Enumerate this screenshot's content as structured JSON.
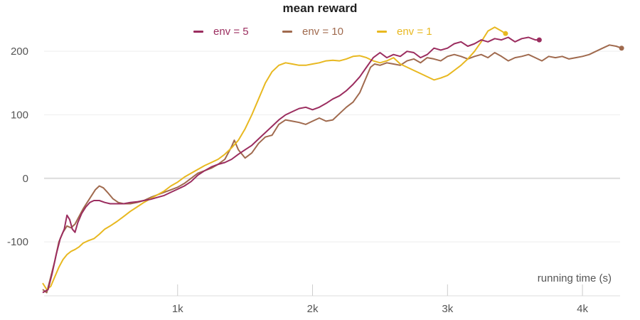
{
  "chart_data": {
    "type": "line",
    "title": "mean reward",
    "xlabel": "running time (s)",
    "ylabel": "",
    "xlim": [
      0,
      4300
    ],
    "ylim": [
      -185,
      245
    ],
    "xticks": [
      1000,
      2000,
      3000,
      4000
    ],
    "xtick_labels": [
      "1k",
      "2k",
      "3k",
      "4k"
    ],
    "yticks": [
      -100,
      0,
      100,
      200
    ],
    "ytick_labels": [
      "-100",
      "0",
      "100",
      "200"
    ],
    "grid": "horizontal",
    "legend_position": "top-center",
    "series": [
      {
        "name": "env = 5",
        "color": "#9b2d5f",
        "points": [
          [
            0,
            -180
          ],
          [
            40,
            -175
          ],
          [
            70,
            -150
          ],
          [
            100,
            -120
          ],
          [
            130,
            -95
          ],
          [
            160,
            -80
          ],
          [
            180,
            -58
          ],
          [
            200,
            -65
          ],
          [
            220,
            -80
          ],
          [
            240,
            -85
          ],
          [
            260,
            -70
          ],
          [
            290,
            -55
          ],
          [
            320,
            -45
          ],
          [
            350,
            -38
          ],
          [
            380,
            -35
          ],
          [
            420,
            -35
          ],
          [
            460,
            -38
          ],
          [
            500,
            -40
          ],
          [
            550,
            -40
          ],
          [
            600,
            -40
          ],
          [
            650,
            -38
          ],
          [
            700,
            -37
          ],
          [
            750,
            -35
          ],
          [
            800,
            -33
          ],
          [
            850,
            -30
          ],
          [
            900,
            -27
          ],
          [
            950,
            -22
          ],
          [
            1000,
            -17
          ],
          [
            1050,
            -12
          ],
          [
            1100,
            -5
          ],
          [
            1150,
            5
          ],
          [
            1200,
            12
          ],
          [
            1250,
            18
          ],
          [
            1300,
            22
          ],
          [
            1350,
            25
          ],
          [
            1400,
            30
          ],
          [
            1450,
            38
          ],
          [
            1500,
            45
          ],
          [
            1550,
            52
          ],
          [
            1600,
            62
          ],
          [
            1650,
            72
          ],
          [
            1700,
            82
          ],
          [
            1750,
            92
          ],
          [
            1800,
            100
          ],
          [
            1850,
            105
          ],
          [
            1900,
            110
          ],
          [
            1950,
            112
          ],
          [
            2000,
            108
          ],
          [
            2050,
            112
          ],
          [
            2100,
            118
          ],
          [
            2150,
            125
          ],
          [
            2200,
            130
          ],
          [
            2250,
            138
          ],
          [
            2300,
            148
          ],
          [
            2350,
            160
          ],
          [
            2400,
            175
          ],
          [
            2450,
            190
          ],
          [
            2500,
            198
          ],
          [
            2550,
            190
          ],
          [
            2600,
            195
          ],
          [
            2650,
            192
          ],
          [
            2700,
            200
          ],
          [
            2750,
            198
          ],
          [
            2800,
            190
          ],
          [
            2850,
            195
          ],
          [
            2900,
            205
          ],
          [
            2950,
            202
          ],
          [
            3000,
            205
          ],
          [
            3050,
            212
          ],
          [
            3100,
            215
          ],
          [
            3150,
            208
          ],
          [
            3200,
            212
          ],
          [
            3250,
            218
          ],
          [
            3300,
            215
          ],
          [
            3350,
            220
          ],
          [
            3400,
            218
          ],
          [
            3450,
            222
          ],
          [
            3500,
            215
          ],
          [
            3550,
            220
          ],
          [
            3600,
            222
          ],
          [
            3650,
            218
          ],
          [
            3680,
            218
          ]
        ]
      },
      {
        "name": "env = 10",
        "color": "#a06a4e",
        "points": [
          [
            0,
            -175
          ],
          [
            30,
            -180
          ],
          [
            60,
            -155
          ],
          [
            90,
            -130
          ],
          [
            120,
            -100
          ],
          [
            150,
            -85
          ],
          [
            180,
            -75
          ],
          [
            210,
            -78
          ],
          [
            240,
            -72
          ],
          [
            270,
            -60
          ],
          [
            300,
            -48
          ],
          [
            330,
            -38
          ],
          [
            360,
            -28
          ],
          [
            390,
            -18
          ],
          [
            420,
            -12
          ],
          [
            450,
            -15
          ],
          [
            480,
            -22
          ],
          [
            520,
            -32
          ],
          [
            560,
            -38
          ],
          [
            600,
            -40
          ],
          [
            650,
            -40
          ],
          [
            700,
            -38
          ],
          [
            750,
            -35
          ],
          [
            800,
            -30
          ],
          [
            850,
            -26
          ],
          [
            900,
            -22
          ],
          [
            950,
            -18
          ],
          [
            1000,
            -14
          ],
          [
            1050,
            -8
          ],
          [
            1100,
            0
          ],
          [
            1150,
            8
          ],
          [
            1200,
            12
          ],
          [
            1250,
            16
          ],
          [
            1300,
            22
          ],
          [
            1350,
            30
          ],
          [
            1400,
            50
          ],
          [
            1420,
            60
          ],
          [
            1450,
            45
          ],
          [
            1500,
            32
          ],
          [
            1550,
            40
          ],
          [
            1600,
            55
          ],
          [
            1650,
            65
          ],
          [
            1700,
            68
          ],
          [
            1750,
            85
          ],
          [
            1800,
            92
          ],
          [
            1850,
            90
          ],
          [
            1900,
            88
          ],
          [
            1950,
            85
          ],
          [
            2000,
            90
          ],
          [
            2050,
            95
          ],
          [
            2100,
            90
          ],
          [
            2150,
            92
          ],
          [
            2200,
            102
          ],
          [
            2250,
            112
          ],
          [
            2300,
            120
          ],
          [
            2350,
            135
          ],
          [
            2400,
            160
          ],
          [
            2430,
            175
          ],
          [
            2460,
            180
          ],
          [
            2500,
            178
          ],
          [
            2550,
            182
          ],
          [
            2600,
            180
          ],
          [
            2650,
            178
          ],
          [
            2700,
            185
          ],
          [
            2750,
            188
          ],
          [
            2800,
            182
          ],
          [
            2850,
            190
          ],
          [
            2900,
            188
          ],
          [
            2950,
            185
          ],
          [
            3000,
            192
          ],
          [
            3050,
            195
          ],
          [
            3100,
            192
          ],
          [
            3150,
            188
          ],
          [
            3200,
            192
          ],
          [
            3250,
            195
          ],
          [
            3300,
            190
          ],
          [
            3350,
            198
          ],
          [
            3400,
            192
          ],
          [
            3450,
            185
          ],
          [
            3500,
            190
          ],
          [
            3550,
            192
          ],
          [
            3600,
            195
          ],
          [
            3650,
            190
          ],
          [
            3700,
            185
          ],
          [
            3750,
            192
          ],
          [
            3800,
            190
          ],
          [
            3850,
            192
          ],
          [
            3900,
            188
          ],
          [
            3950,
            190
          ],
          [
            4000,
            192
          ],
          [
            4050,
            195
          ],
          [
            4100,
            200
          ],
          [
            4150,
            205
          ],
          [
            4200,
            210
          ],
          [
            4250,
            208
          ],
          [
            4290,
            205
          ]
        ]
      },
      {
        "name": "env = 1",
        "color": "#e8b820",
        "points": [
          [
            0,
            -165
          ],
          [
            30,
            -175
          ],
          [
            60,
            -170
          ],
          [
            90,
            -155
          ],
          [
            120,
            -140
          ],
          [
            150,
            -128
          ],
          [
            180,
            -120
          ],
          [
            210,
            -115
          ],
          [
            240,
            -112
          ],
          [
            270,
            -108
          ],
          [
            300,
            -102
          ],
          [
            340,
            -98
          ],
          [
            380,
            -95
          ],
          [
            420,
            -88
          ],
          [
            460,
            -80
          ],
          [
            500,
            -75
          ],
          [
            550,
            -68
          ],
          [
            600,
            -60
          ],
          [
            650,
            -52
          ],
          [
            700,
            -45
          ],
          [
            750,
            -38
          ],
          [
            800,
            -32
          ],
          [
            850,
            -26
          ],
          [
            900,
            -20
          ],
          [
            950,
            -12
          ],
          [
            1000,
            -6
          ],
          [
            1050,
            2
          ],
          [
            1100,
            8
          ],
          [
            1150,
            14
          ],
          [
            1200,
            20
          ],
          [
            1250,
            25
          ],
          [
            1300,
            30
          ],
          [
            1350,
            38
          ],
          [
            1400,
            48
          ],
          [
            1450,
            60
          ],
          [
            1500,
            78
          ],
          [
            1550,
            100
          ],
          [
            1600,
            125
          ],
          [
            1650,
            150
          ],
          [
            1700,
            168
          ],
          [
            1750,
            178
          ],
          [
            1800,
            182
          ],
          [
            1850,
            180
          ],
          [
            1900,
            178
          ],
          [
            1950,
            178
          ],
          [
            2000,
            180
          ],
          [
            2050,
            182
          ],
          [
            2100,
            185
          ],
          [
            2150,
            186
          ],
          [
            2200,
            185
          ],
          [
            2250,
            188
          ],
          [
            2300,
            192
          ],
          [
            2350,
            193
          ],
          [
            2400,
            190
          ],
          [
            2450,
            185
          ],
          [
            2500,
            182
          ],
          [
            2550,
            185
          ],
          [
            2600,
            190
          ],
          [
            2650,
            180
          ],
          [
            2700,
            175
          ],
          [
            2750,
            170
          ],
          [
            2800,
            165
          ],
          [
            2850,
            160
          ],
          [
            2900,
            155
          ],
          [
            2950,
            158
          ],
          [
            3000,
            162
          ],
          [
            3050,
            170
          ],
          [
            3100,
            178
          ],
          [
            3150,
            188
          ],
          [
            3200,
            200
          ],
          [
            3250,
            215
          ],
          [
            3300,
            232
          ],
          [
            3350,
            238
          ],
          [
            3400,
            232
          ],
          [
            3430,
            228
          ]
        ]
      }
    ]
  }
}
